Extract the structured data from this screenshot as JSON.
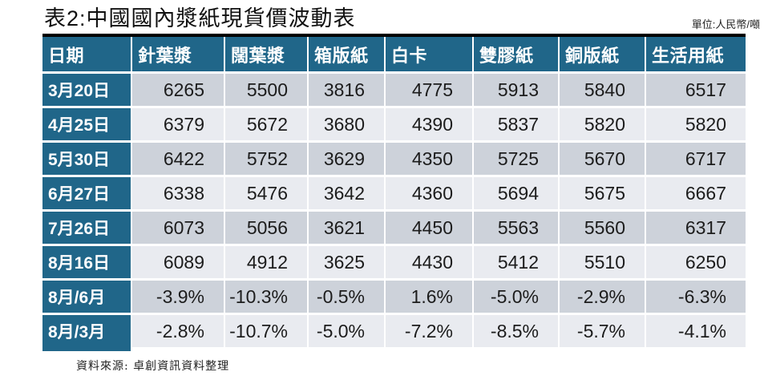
{
  "title": "表2:中國國內漿紙現貨價波動表",
  "unit_label": "單位:人民幣/噸",
  "source_note": "資料來源: 卓創資訊資料整理",
  "colors": {
    "header_bg": "#206689",
    "row_dark": "#cdd2da",
    "row_light": "#e9ebf0",
    "top_rule": "#000000",
    "header_text": "#ffffff",
    "cell_text": "#1c1c1c"
  },
  "chart_data": {
    "type": "table",
    "title": "表2:中國國內漿紙現貨價波動表",
    "unit": "人民幣/噸",
    "columns": [
      "日期",
      "針葉漿",
      "闊葉漿",
      "箱版紙",
      "白卡",
      "雙膠紙",
      "銅版紙",
      "生活用紙"
    ],
    "rows": [
      [
        "3月20日",
        "6265",
        "5500",
        "3816",
        "4775",
        "5913",
        "5840",
        "6517"
      ],
      [
        "4月25日",
        "6379",
        "5672",
        "3680",
        "4390",
        "5837",
        "5820",
        "5820"
      ],
      [
        "5月30日",
        "6422",
        "5752",
        "3629",
        "4350",
        "5725",
        "5670",
        "6717"
      ],
      [
        "6月27日",
        "6338",
        "5476",
        "3642",
        "4360",
        "5694",
        "5675",
        "6667"
      ],
      [
        "7月26日",
        "6073",
        "5056",
        "3621",
        "4450",
        "5563",
        "5560",
        "6317"
      ],
      [
        "8月16日",
        "6089",
        "4912",
        "3625",
        "4430",
        "5412",
        "5510",
        "6250"
      ],
      [
        "8月/6月",
        "-3.9%",
        "-10.3%",
        "-0.5%",
        "1.6%",
        "-5.0%",
        "-2.9%",
        "-6.3%"
      ],
      [
        "8月/3月",
        "-2.8%",
        "-10.7%",
        "-5.0%",
        "-7.2%",
        "-8.5%",
        "-5.7%",
        "-4.1%"
      ]
    ],
    "layout": {
      "striped": true,
      "first_row_shade": "dark",
      "legend": "none",
      "grid": "white-separators"
    }
  }
}
